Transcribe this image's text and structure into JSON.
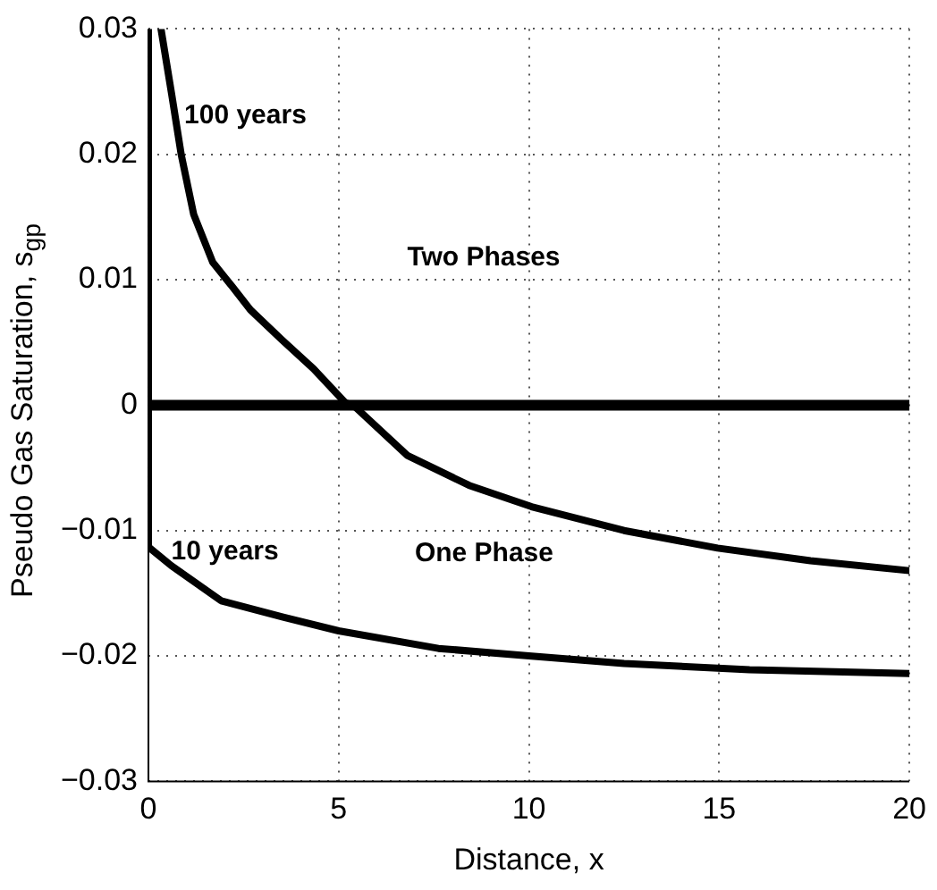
{
  "chart_data": {
    "type": "line",
    "xlabel": "Distance, x",
    "ylabel": "Pseudo Gas Saturation, s$_{gp}$",
    "series": [
      {
        "color": "#000000",
        "x": [
          0.33,
          0.61,
          0.86,
          1.19,
          1.69,
          2.19,
          2.68,
          3.51,
          4.34,
          5.17,
          5.42,
          6.8,
          8.43,
          10.07,
          12.5,
          14.96,
          17.4,
          20
        ],
        "values": [
          0.03,
          0.0248,
          0.02,
          0.0152,
          0.0114,
          0.0095,
          0.0076,
          0.0052,
          0.0029,
          0.0002,
          -0.0001,
          -0.004,
          -0.0064,
          -0.0081,
          -0.01,
          -0.0114,
          -0.0124,
          -0.0132
        ]
      },
      {
        "color": "#000000",
        "x": [
          0,
          0,
          0.6,
          1.91,
          3.54,
          5,
          7.62,
          10,
          12.5,
          15.8,
          20
        ],
        "values": [
          0.03,
          -0.0113,
          -0.0128,
          -0.0156,
          -0.0169,
          -0.018,
          -0.0194,
          -0.02,
          -0.0206,
          -0.0211,
          -0.0214
        ]
      }
    ],
    "xlim": [
      0,
      20
    ],
    "xticks": [
      0,
      5,
      10,
      15,
      20
    ],
    "ylim": [
      -0.03,
      0.03
    ],
    "yticks": [
      {
        "value": -0.03,
        "label": "−0.03"
      },
      {
        "value": -0.02,
        "label": "−0.02"
      },
      {
        "value": -0.01,
        "label": "−0.01"
      },
      0,
      0.01,
      0.02,
      0.03
    ],
    "ref_lines": [
      {
        "axis": "y",
        "value": 0,
        "color": "#000000"
      }
    ],
    "annotations": [
      {
        "text": "100 years",
        "x": 0.94,
        "y": 0.0231
      },
      "Two Phases",
      {
        "text": "10 years",
        "x": 0.6,
        "y": -0.0117
      },
      "One Phase"
    ],
    "grid": true,
    "line_style": "solid",
    "marker": "none",
    "legend": false
  }
}
